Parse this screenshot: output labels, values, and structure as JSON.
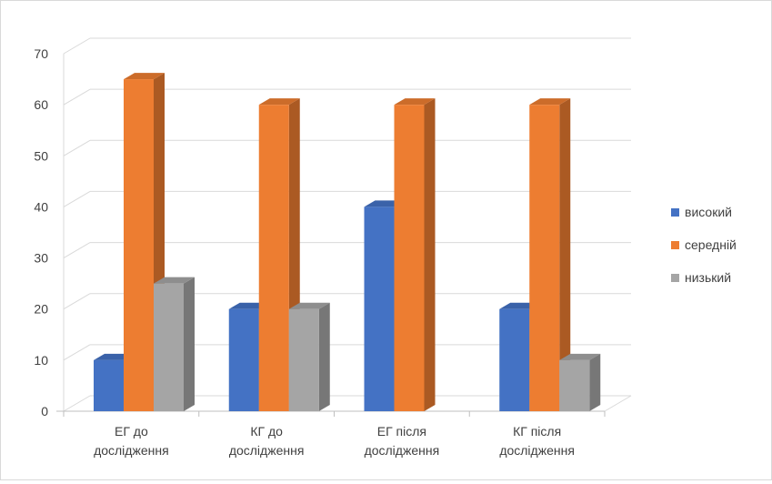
{
  "chart_data": {
    "type": "bar",
    "subtype": "3d-clustered-column",
    "title": "",
    "xlabel": "",
    "ylabel": "",
    "ylim": [
      0,
      70
    ],
    "yticks": [
      "0",
      "10",
      "20",
      "30",
      "40",
      "50",
      "60",
      "70"
    ],
    "grid": true,
    "legend_position": "right",
    "categories": [
      [
        "ЕГ до",
        "дослідження"
      ],
      [
        "КГ до",
        "дослідження"
      ],
      [
        "ЕГ після",
        "дослідження"
      ],
      [
        "КГ після",
        "дослідження"
      ]
    ],
    "series": [
      {
        "name": "високий",
        "values": [
          10,
          20,
          40,
          20
        ],
        "color": "#4472C4"
      },
      {
        "name": "середній",
        "values": [
          65,
          60,
          60,
          60
        ],
        "color": "#ED7D31"
      },
      {
        "name": "низький",
        "values": [
          25,
          20,
          0,
          10
        ],
        "color": "#A5A5A5"
      }
    ]
  }
}
